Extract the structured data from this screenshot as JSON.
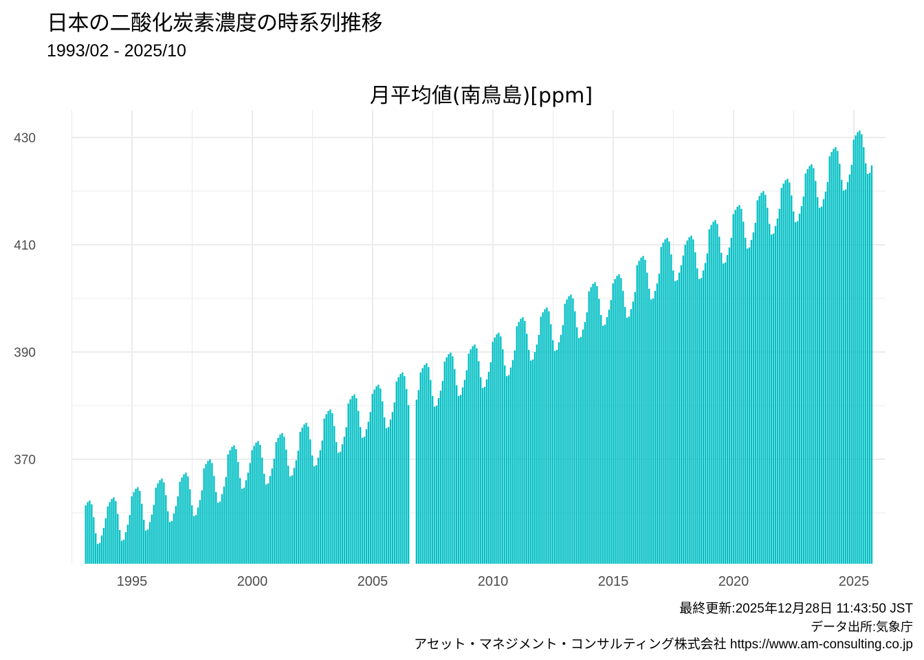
{
  "header": {
    "title": "日本の二酸化炭素濃度の時系列推移",
    "subtitle": "1993/02 - 2025/10"
  },
  "footer": {
    "updated": "最終更新:2025年12月28日 11:43:50 JST",
    "source": "データ出所:気象庁",
    "company": "アセット・マネジメント・コンサルティング株式会社 https://www.am-consulting.co.jp"
  },
  "chart_data": {
    "type": "bar",
    "title": "月平均値(南鳥島)[ppm]",
    "xlabel": "",
    "ylabel": "",
    "start": "1993-02",
    "end": "2025-10",
    "frequency": "monthly",
    "bar_color": "#00BFC4",
    "grid": true,
    "ylim": [
      350.4,
      432
    ],
    "yticks": [
      370,
      390,
      410,
      430
    ],
    "yticks_minor": [
      360,
      380,
      400,
      420
    ],
    "xticks": [
      1995,
      2000,
      2005,
      2010,
      2015,
      2020,
      2025
    ],
    "series": [
      {
        "year": 1993,
        "months": [
          null,
          361.4,
          362.0,
          362.3,
          361.6,
          359.2,
          356.2,
          354.2,
          354.4,
          355.8,
          357.2,
          359.0
        ]
      },
      {
        "year": 1994,
        "months": [
          361.2,
          362.0,
          362.6,
          362.9,
          362.2,
          359.8,
          356.8,
          354.8,
          355.0,
          356.4,
          357.8,
          359.6
        ]
      },
      {
        "year": 1995,
        "months": [
          363.1,
          363.9,
          364.5,
          364.8,
          364.1,
          361.7,
          358.7,
          356.7,
          356.9,
          358.3,
          359.7,
          361.5
        ]
      },
      {
        "year": 1996,
        "months": [
          364.7,
          365.5,
          366.1,
          366.4,
          365.7,
          363.3,
          360.3,
          358.3,
          358.5,
          359.9,
          361.3,
          363.1
        ]
      },
      {
        "year": 1997,
        "months": [
          365.8,
          366.6,
          367.2,
          367.5,
          366.8,
          364.4,
          361.4,
          359.4,
          359.6,
          361.0,
          362.4,
          364.2
        ]
      },
      {
        "year": 1998,
        "months": [
          368.3,
          369.1,
          369.7,
          370.0,
          369.3,
          366.9,
          363.9,
          361.9,
          362.1,
          363.5,
          364.9,
          366.7
        ]
      },
      {
        "year": 1999,
        "months": [
          370.9,
          371.7,
          372.3,
          372.6,
          371.9,
          369.5,
          366.5,
          364.5,
          364.7,
          366.1,
          367.5,
          369.3
        ]
      },
      {
        "year": 2000,
        "months": [
          371.7,
          372.5,
          373.1,
          373.4,
          372.7,
          370.3,
          367.3,
          365.3,
          365.5,
          366.9,
          368.3,
          370.1
        ]
      },
      {
        "year": 2001,
        "months": [
          373.2,
          374.0,
          374.6,
          374.9,
          374.2,
          371.8,
          368.8,
          366.8,
          367.0,
          368.4,
          369.8,
          371.6
        ]
      },
      {
        "year": 2002,
        "months": [
          375.1,
          375.9,
          376.5,
          376.8,
          376.1,
          373.7,
          370.7,
          368.7,
          368.9,
          370.3,
          371.7,
          373.5
        ]
      },
      {
        "year": 2003,
        "months": [
          377.6,
          378.4,
          379.0,
          379.3,
          378.6,
          376.2,
          373.2,
          371.2,
          371.4,
          372.8,
          374.2,
          376.0
        ]
      },
      {
        "year": 2004,
        "months": [
          380.4,
          381.2,
          381.8,
          382.1,
          381.4,
          379.0,
          376.0,
          374.0,
          374.2,
          375.6,
          377.0,
          378.8
        ]
      },
      {
        "year": 2005,
        "months": [
          382.2,
          383.0,
          383.6,
          383.9,
          383.2,
          380.8,
          377.8,
          375.8,
          376.0,
          377.4,
          378.8,
          380.6
        ]
      },
      {
        "year": 2006,
        "months": [
          384.5,
          385.3,
          385.9,
          386.2,
          385.5,
          383.1,
          380.1,
          null,
          null,
          null,
          381.1,
          382.9
        ]
      },
      {
        "year": 2007,
        "months": [
          386.2,
          387.0,
          387.6,
          387.9,
          387.2,
          384.8,
          381.8,
          379.8,
          380.0,
          381.4,
          382.8,
          384.6
        ]
      },
      {
        "year": 2008,
        "months": [
          388.2,
          389.0,
          389.6,
          389.9,
          389.2,
          386.8,
          383.8,
          381.8,
          382.0,
          383.4,
          384.8,
          386.6
        ]
      },
      {
        "year": 2009,
        "months": [
          389.7,
          390.5,
          391.1,
          391.4,
          390.7,
          388.3,
          385.3,
          383.3,
          383.5,
          384.9,
          386.3,
          388.1
        ]
      },
      {
        "year": 2010,
        "months": [
          391.9,
          392.7,
          393.3,
          393.6,
          392.9,
          390.5,
          387.5,
          385.5,
          385.7,
          387.1,
          388.5,
          390.3
        ]
      },
      {
        "year": 2011,
        "months": [
          394.8,
          395.6,
          396.2,
          396.5,
          395.8,
          393.4,
          390.4,
          388.4,
          388.6,
          390.0,
          391.4,
          393.2
        ]
      },
      {
        "year": 2012,
        "months": [
          396.6,
          397.4,
          398.0,
          398.3,
          397.6,
          395.2,
          392.2,
          390.2,
          390.4,
          391.8,
          393.2,
          395.0
        ]
      },
      {
        "year": 2013,
        "months": [
          399.0,
          399.8,
          400.4,
          400.7,
          400.0,
          397.6,
          394.6,
          392.6,
          392.8,
          394.2,
          395.6,
          397.4
        ]
      },
      {
        "year": 2014,
        "months": [
          401.3,
          402.1,
          402.7,
          403.0,
          402.3,
          399.9,
          396.9,
          394.9,
          395.1,
          396.5,
          397.9,
          399.7
        ]
      },
      {
        "year": 2015,
        "months": [
          402.8,
          403.6,
          404.2,
          404.5,
          403.8,
          401.4,
          398.4,
          396.4,
          396.6,
          398.0,
          399.4,
          401.2
        ]
      },
      {
        "year": 2016,
        "months": [
          406.2,
          407.0,
          407.6,
          407.9,
          407.2,
          404.8,
          401.8,
          399.8,
          400.0,
          401.4,
          402.8,
          404.6
        ]
      },
      {
        "year": 2017,
        "months": [
          409.6,
          410.4,
          411.0,
          411.3,
          410.6,
          408.2,
          405.2,
          403.2,
          403.4,
          404.8,
          406.2,
          408.0
        ]
      },
      {
        "year": 2018,
        "months": [
          410.0,
          410.8,
          411.4,
          411.7,
          411.0,
          408.6,
          405.6,
          403.6,
          403.8,
          405.2,
          406.6,
          408.4
        ]
      },
      {
        "year": 2019,
        "months": [
          412.9,
          413.7,
          414.3,
          414.6,
          413.9,
          411.5,
          408.5,
          406.5,
          406.7,
          408.1,
          409.5,
          411.3
        ]
      },
      {
        "year": 2020,
        "months": [
          415.7,
          416.5,
          417.1,
          417.4,
          416.7,
          414.3,
          411.3,
          409.3,
          409.5,
          410.9,
          412.3,
          414.1
        ]
      },
      {
        "year": 2021,
        "months": [
          418.3,
          419.1,
          419.7,
          420.0,
          419.3,
          416.9,
          413.9,
          411.9,
          412.1,
          413.5,
          414.9,
          416.7
        ]
      },
      {
        "year": 2022,
        "months": [
          420.6,
          421.4,
          422.0,
          422.3,
          421.6,
          419.2,
          416.2,
          414.2,
          414.4,
          415.8,
          417.2,
          419.0
        ]
      },
      {
        "year": 2023,
        "months": [
          423.3,
          424.1,
          424.7,
          425.0,
          424.3,
          421.9,
          418.9,
          416.9,
          417.1,
          418.5,
          419.9,
          421.7
        ]
      },
      {
        "year": 2024,
        "months": [
          426.5,
          427.3,
          427.9,
          428.2,
          427.5,
          425.1,
          422.1,
          420.1,
          420.3,
          421.7,
          423.1,
          424.9
        ]
      },
      {
        "year": 2025,
        "months": [
          429.6,
          430.4,
          431.0,
          431.3,
          430.6,
          428.2,
          425.2,
          423.2,
          423.4,
          424.8,
          null,
          null
        ]
      }
    ]
  }
}
